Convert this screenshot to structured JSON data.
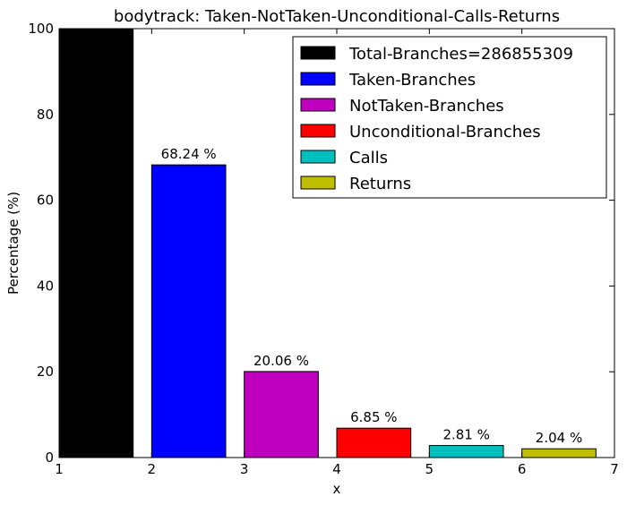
{
  "chart_data": {
    "type": "bar",
    "title": "bodytrack: Taken-NotTaken-Unconditional-Calls-Returns",
    "xlabel": "x",
    "ylabel": "Percentage (%)",
    "xlim": [
      1,
      7
    ],
    "ylim": [
      0,
      100
    ],
    "xticks": [
      "1",
      "2",
      "3",
      "4",
      "5",
      "6",
      "7"
    ],
    "yticks": [
      "0",
      "20",
      "40",
      "60",
      "80",
      "100"
    ],
    "grid": false,
    "legend_position": "top-right",
    "bar_width": 0.8,
    "series": [
      {
        "name": "Total-Branches=286855309",
        "x": 1,
        "value": 100,
        "label": "",
        "color": "#000000"
      },
      {
        "name": "Taken-Branches",
        "x": 2,
        "value": 68.24,
        "label": "68.24 %",
        "color": "#0000ff"
      },
      {
        "name": "NotTaken-Branches",
        "x": 3,
        "value": 20.06,
        "label": "20.06 %",
        "color": "#bf00bf"
      },
      {
        "name": "Unconditional-Branches",
        "x": 4,
        "value": 6.85,
        "label": "6.85 %",
        "color": "#ff0000"
      },
      {
        "name": "Calls",
        "x": 5,
        "value": 2.81,
        "label": "2.81 %",
        "color": "#00bfbf"
      },
      {
        "name": "Returns",
        "x": 6,
        "value": 2.04,
        "label": "2.04 %",
        "color": "#bfbf00"
      }
    ]
  }
}
